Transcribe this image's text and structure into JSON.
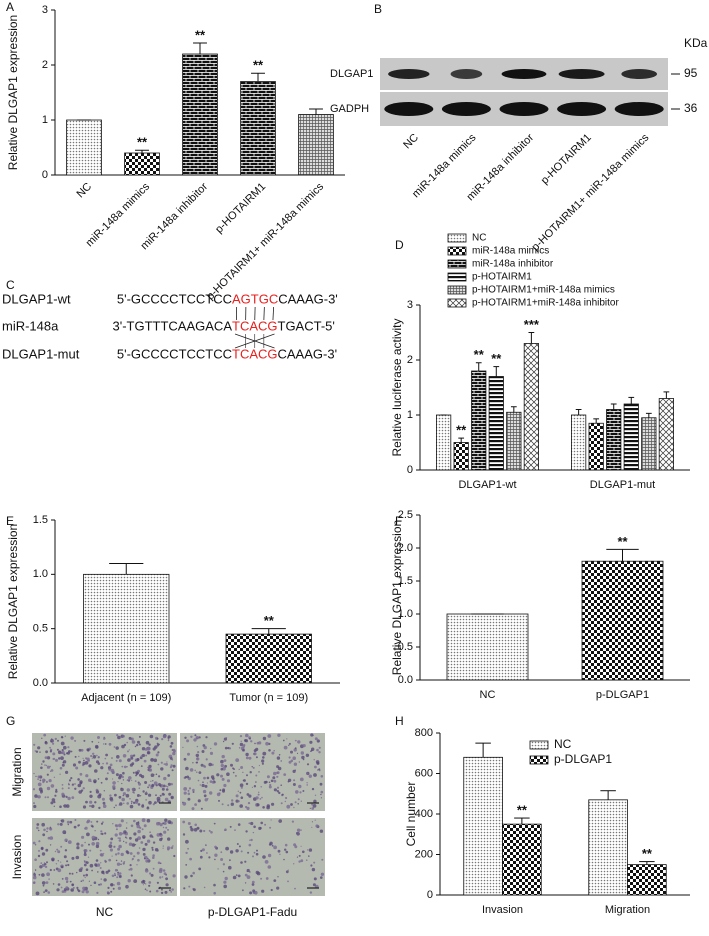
{
  "chart_data": [
    {
      "panel": "A",
      "type": "bar",
      "ylabel": "Relative DLGAP1 expression",
      "categories": [
        "NC",
        "miR-148a mimics",
        "miR-148a inhibitor",
        "p-HOTAIRM1",
        "p-HOTAIRM1+ miR-148a mimics"
      ],
      "values": [
        1,
        0.4,
        2.2,
        1.7,
        1.1
      ],
      "errors": [
        0,
        0.05,
        0.2,
        0.15,
        0.1
      ],
      "significance": [
        null,
        "**",
        "**",
        "**",
        null
      ],
      "patterns": [
        "dots",
        "checker",
        "bricks",
        "bricks",
        "grid"
      ],
      "ylim": [
        0,
        3
      ],
      "yticks": [
        0,
        1,
        2,
        3
      ]
    },
    {
      "panel": "D",
      "type": "grouped_bar",
      "ylabel": "Relative luciferase activity",
      "categories": [
        "DLGAP1-wt",
        "DLGAP1-mut"
      ],
      "series": [
        {
          "name": "NC",
          "pattern": "dots",
          "values": [
            1,
            1
          ],
          "errors": [
            0,
            0.1
          ],
          "significance": [
            null,
            null
          ]
        },
        {
          "name": "miR-148a mimics",
          "pattern": "checker",
          "values": [
            0.5,
            0.85
          ],
          "errors": [
            0.08,
            0.08
          ],
          "significance": [
            "**",
            null
          ]
        },
        {
          "name": "miR-148a inhibitor",
          "pattern": "bricks",
          "values": [
            1.8,
            1.1
          ],
          "errors": [
            0.15,
            0.1
          ],
          "significance": [
            "**",
            null
          ]
        },
        {
          "name": "p-HOTAIRM1",
          "pattern": "hstripes",
          "values": [
            1.7,
            1.2
          ],
          "errors": [
            0.18,
            0.12
          ],
          "significance": [
            "**",
            null
          ]
        },
        {
          "name": "p-HOTAIRM1+miR-148a mimics",
          "pattern": "grid",
          "values": [
            1.05,
            0.95
          ],
          "errors": [
            0.1,
            0.08
          ],
          "significance": [
            null,
            null
          ]
        },
        {
          "name": "p-HOTAIRM1+miR-148a inhibitor",
          "pattern": "xhatch",
          "values": [
            2.3,
            1.3
          ],
          "errors": [
            0.2,
            0.12
          ],
          "significance": [
            "***",
            null
          ]
        }
      ],
      "ylim": [
        0,
        3
      ],
      "yticks": [
        0,
        1,
        2,
        3
      ],
      "legend": "top-left"
    },
    {
      "panel": "E",
      "type": "bar",
      "ylabel": "Relative DLGAP1 expression",
      "categories": [
        "Adjacent (n = 109)",
        "Tumor (n = 109)"
      ],
      "values": [
        1.0,
        0.45
      ],
      "errors": [
        0.1,
        0.05
      ],
      "significance": [
        null,
        "**"
      ],
      "patterns": [
        "dots",
        "checker"
      ],
      "ylim": [
        0,
        1.5
      ],
      "yticks": [
        {
          "value": 0,
          "label": "0.0"
        },
        0.5,
        {
          "value": 1,
          "label": "1.0"
        },
        1.5
      ]
    },
    {
      "panel": "F",
      "type": "bar",
      "ylabel": "Relative DLGAP1 expression",
      "categories": [
        "NC",
        "p-DLGAP1"
      ],
      "values": [
        1.0,
        1.8
      ],
      "errors": [
        0,
        0.18
      ],
      "significance": [
        null,
        "**"
      ],
      "patterns": [
        "dots",
        "checker"
      ],
      "ylim": [
        0,
        2.5
      ],
      "yticks": [
        {
          "value": 0,
          "label": "0.0"
        },
        0.5,
        {
          "value": 1,
          "label": "1.0"
        },
        1.5,
        {
          "value": 2,
          "label": "2.0"
        },
        2.5
      ]
    },
    {
      "panel": "H",
      "type": "grouped_bar",
      "ylabel": "Cell number",
      "categories": [
        "Invasion",
        "Migration"
      ],
      "series": [
        {
          "name": "NC",
          "pattern": "dots",
          "values": [
            680,
            470
          ],
          "errors": [
            70,
            45
          ],
          "significance": [
            null,
            null
          ]
        },
        {
          "name": "p-DLGAP1",
          "pattern": "checker",
          "values": [
            350,
            150
          ],
          "errors": [
            30,
            15
          ],
          "significance": [
            "**",
            "**"
          ]
        }
      ],
      "ylim": [
        0,
        800
      ],
      "yticks": [
        0,
        200,
        400,
        600,
        800
      ],
      "legend": "top-right"
    }
  ],
  "blot": {
    "panel": "B",
    "unit": "KDa",
    "rows": [
      {
        "label": "DLGAP1",
        "size": "95"
      },
      {
        "label": "GADPH",
        "size": "36"
      }
    ],
    "lanes": [
      "NC",
      "miR-148a mimics",
      "miR-148a inhibitor",
      "p-HOTAIRM1",
      "p-HOTAIRM1+ miR-148a mimics"
    ]
  },
  "sequence": {
    "panel": "C",
    "rows": [
      {
        "name": "DLGAP1-wt",
        "prefix": "5'-GCCCCTCCTCC",
        "site": "AGTGC",
        "suffix": "CAAAG-3'"
      },
      {
        "name": "miR-148a",
        "prefix": "3'-TGTTTCAAGACA",
        "site": "TCACG",
        "suffix": "TGACT-5'"
      },
      {
        "name": "DLGAP1-mut",
        "prefix": "5'-GCCCCTCCTCC",
        "site": "TCACG",
        "suffix": "CAAAG-3'"
      }
    ]
  },
  "micrographs": {
    "panel": "G",
    "rows": [
      "Migration",
      "Invasion"
    ],
    "columns": [
      "NC",
      "p-DLGAP1-Fadu"
    ]
  }
}
